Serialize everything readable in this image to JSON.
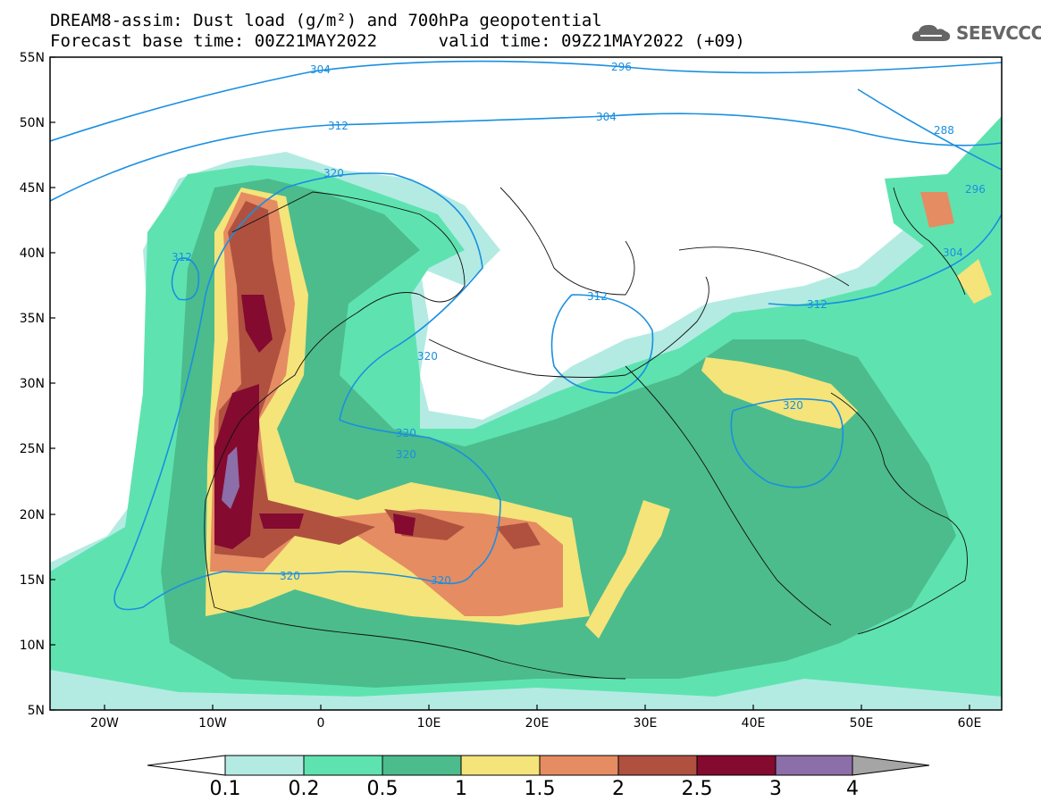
{
  "title": {
    "line1": "DREAM8-assim: Dust load (g/m²) and 700hPa geopotential",
    "line2": "Forecast base time: 00Z21MAY2022      valid time: 09Z21MAY2022 (+09)"
  },
  "logo": {
    "text": "SEEVCCC",
    "icon": "cloud-icon"
  },
  "axes": {
    "lat_labels": [
      "55N",
      "50N",
      "45N",
      "40N",
      "35N",
      "30N",
      "25N",
      "20N",
      "15N",
      "10N",
      "5N"
    ],
    "lon_labels": [
      "20W",
      "10W",
      "0",
      "10E",
      "20E",
      "30E",
      "40E",
      "50E",
      "60E"
    ]
  },
  "contour_labels": [
    "304",
    "296",
    "312",
    "304",
    "288",
    "296",
    "320",
    "312",
    "304",
    "312",
    "312",
    "320",
    "320",
    "320",
    "320",
    "320",
    "320"
  ],
  "colorbar": {
    "levels": [
      "0.1",
      "0.2",
      "0.5",
      "1",
      "1.5",
      "2",
      "2.5",
      "3",
      "4"
    ],
    "colors": [
      "#b3ebe3",
      "#5ee3b0",
      "#4cbc8c",
      "#f4e47a",
      "#e58c62",
      "#b05140",
      "#840a30",
      "#8c6ea8",
      "#a5a5a5"
    ]
  }
}
